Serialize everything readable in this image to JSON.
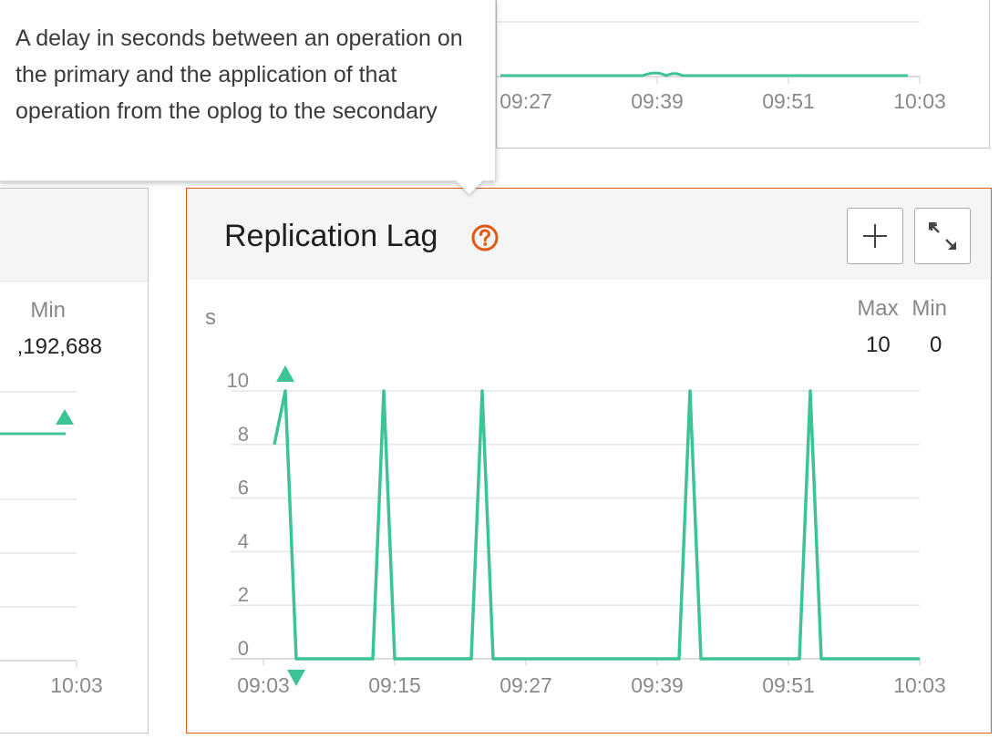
{
  "tooltip": {
    "text": "A delay in seconds between an operation on the primary and the application of that operation from the oplog to the secondary"
  },
  "top_chart": {
    "x_ticks": [
      "09:27",
      "09:39",
      "09:51",
      "10:03"
    ]
  },
  "left_chart": {
    "min_label": "Min",
    "min_value": ",192,688",
    "x_ticks": [
      "10:03"
    ]
  },
  "main_chart": {
    "title": "Replication Lag",
    "add_button_label": "+",
    "unit": "s",
    "max_label": "Max",
    "min_label": "Min",
    "max_value": "10",
    "min_value": "0",
    "y_ticks": [
      "10",
      "8",
      "6",
      "4",
      "2",
      "0"
    ],
    "x_ticks": [
      "09:03",
      "09:15",
      "09:27",
      "09:39",
      "09:51",
      "10:03"
    ]
  },
  "colors": {
    "accent": "#e05a14",
    "series": "#3cc494",
    "grid": "#e6e6e6"
  },
  "chart_data": {
    "type": "line",
    "title": "Replication Lag",
    "ylabel": "s",
    "ylim": [
      0,
      10
    ],
    "x_ticks": [
      "09:03",
      "09:15",
      "09:27",
      "09:39",
      "09:51",
      "10:03"
    ],
    "series": [
      {
        "x": [
          "09:04",
          "09:05",
          "09:06",
          "09:13",
          "09:14",
          "09:15",
          "09:22",
          "09:23",
          "09:24",
          "09:41",
          "09:42",
          "09:43",
          "09:52",
          "09:53",
          "09:54",
          "10:03"
        ],
        "values": [
          8,
          10,
          0,
          0,
          10,
          0,
          0,
          10,
          0,
          0,
          10,
          0,
          0,
          10,
          0,
          0
        ]
      }
    ]
  }
}
